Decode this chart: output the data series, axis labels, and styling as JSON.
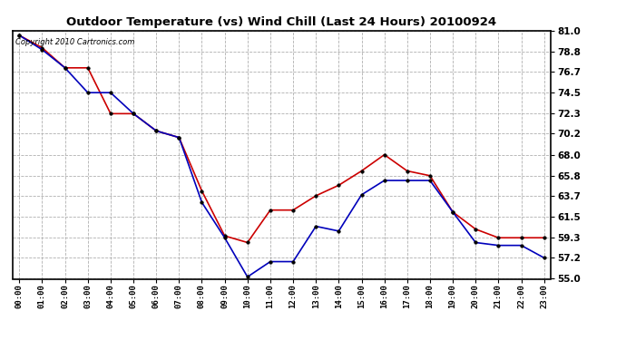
{
  "title": "Outdoor Temperature (vs) Wind Chill (Last 24 Hours) 20100924",
  "copyright_text": "Copyright 2010 Cartronics.com",
  "x_labels": [
    "00:00",
    "01:00",
    "02:00",
    "03:00",
    "04:00",
    "05:00",
    "06:00",
    "07:00",
    "08:00",
    "09:00",
    "10:00",
    "11:00",
    "12:00",
    "13:00",
    "14:00",
    "15:00",
    "16:00",
    "17:00",
    "18:00",
    "19:00",
    "20:00",
    "21:00",
    "22:00",
    "23:00"
  ],
  "temp_red": [
    80.5,
    79.2,
    77.1,
    77.1,
    72.3,
    72.3,
    70.5,
    69.8,
    64.2,
    59.5,
    58.8,
    62.2,
    62.2,
    63.7,
    64.8,
    66.3,
    68.0,
    66.3,
    65.8,
    62.0,
    60.2,
    59.3,
    59.3,
    59.3
  ],
  "wind_blue": [
    80.5,
    79.0,
    77.1,
    74.5,
    74.5,
    72.3,
    70.5,
    69.8,
    63.0,
    59.3,
    55.2,
    56.8,
    56.8,
    60.5,
    60.0,
    63.8,
    65.3,
    65.3,
    65.3,
    62.0,
    58.8,
    58.5,
    58.5,
    57.2
  ],
  "ylim_min": 55.0,
  "ylim_max": 81.0,
  "yticks": [
    55.0,
    57.2,
    59.3,
    61.5,
    63.7,
    65.8,
    68.0,
    70.2,
    72.3,
    74.5,
    76.7,
    78.8,
    81.0
  ],
  "red_color": "#cc0000",
  "blue_color": "#0000bb",
  "bg_color": "#ffffff",
  "grid_color": "#b0b0b0",
  "marker_size": 2.5,
  "line_width": 1.2
}
